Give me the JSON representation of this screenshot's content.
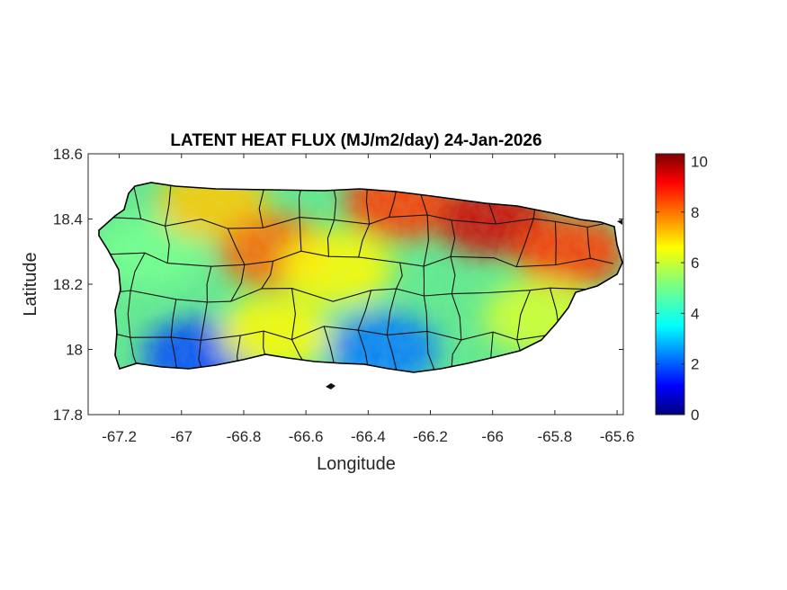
{
  "chart_data": {
    "type": "heatmap",
    "title": "LATENT HEAT FLUX (MJ/m2/day) 24-Jan-2026",
    "xlabel": "Longitude",
    "ylabel": "Latitude",
    "xlim": [
      -67.3,
      -65.58
    ],
    "ylim": [
      17.8,
      18.6
    ],
    "x_ticks": [
      "-67.2",
      "-67",
      "-66.8",
      "-66.6",
      "-66.4",
      "-66.2",
      "-66",
      "-65.8",
      "-65.6"
    ],
    "y_ticks": [
      "18.6",
      "18.4",
      "18.2",
      "18",
      "17.8"
    ],
    "colorbar": {
      "colormap": "jet",
      "range": [
        0,
        10.3
      ],
      "ticks": [
        "10",
        "8",
        "6",
        "4",
        "2",
        "0"
      ]
    },
    "regions": [
      {
        "lon": -67.1,
        "lat": 18.3,
        "value": 5.0
      },
      {
        "lon": -66.9,
        "lat": 18.45,
        "value": 7.0
      },
      {
        "lon": -66.7,
        "lat": 18.3,
        "value": 8.0
      },
      {
        "lon": -66.5,
        "lat": 18.25,
        "value": 6.5
      },
      {
        "lon": -66.3,
        "lat": 18.45,
        "value": 8.5
      },
      {
        "lon": -66.0,
        "lat": 18.4,
        "value": 9.5
      },
      {
        "lon": -65.75,
        "lat": 18.3,
        "value": 8.5
      },
      {
        "lon": -66.35,
        "lat": 18.0,
        "value": 2.5
      },
      {
        "lon": -66.95,
        "lat": 17.98,
        "value": 2.0
      },
      {
        "lon": -66.7,
        "lat": 18.05,
        "value": 6.5
      },
      {
        "lon": -65.85,
        "lat": 18.1,
        "value": 6.0
      }
    ]
  }
}
